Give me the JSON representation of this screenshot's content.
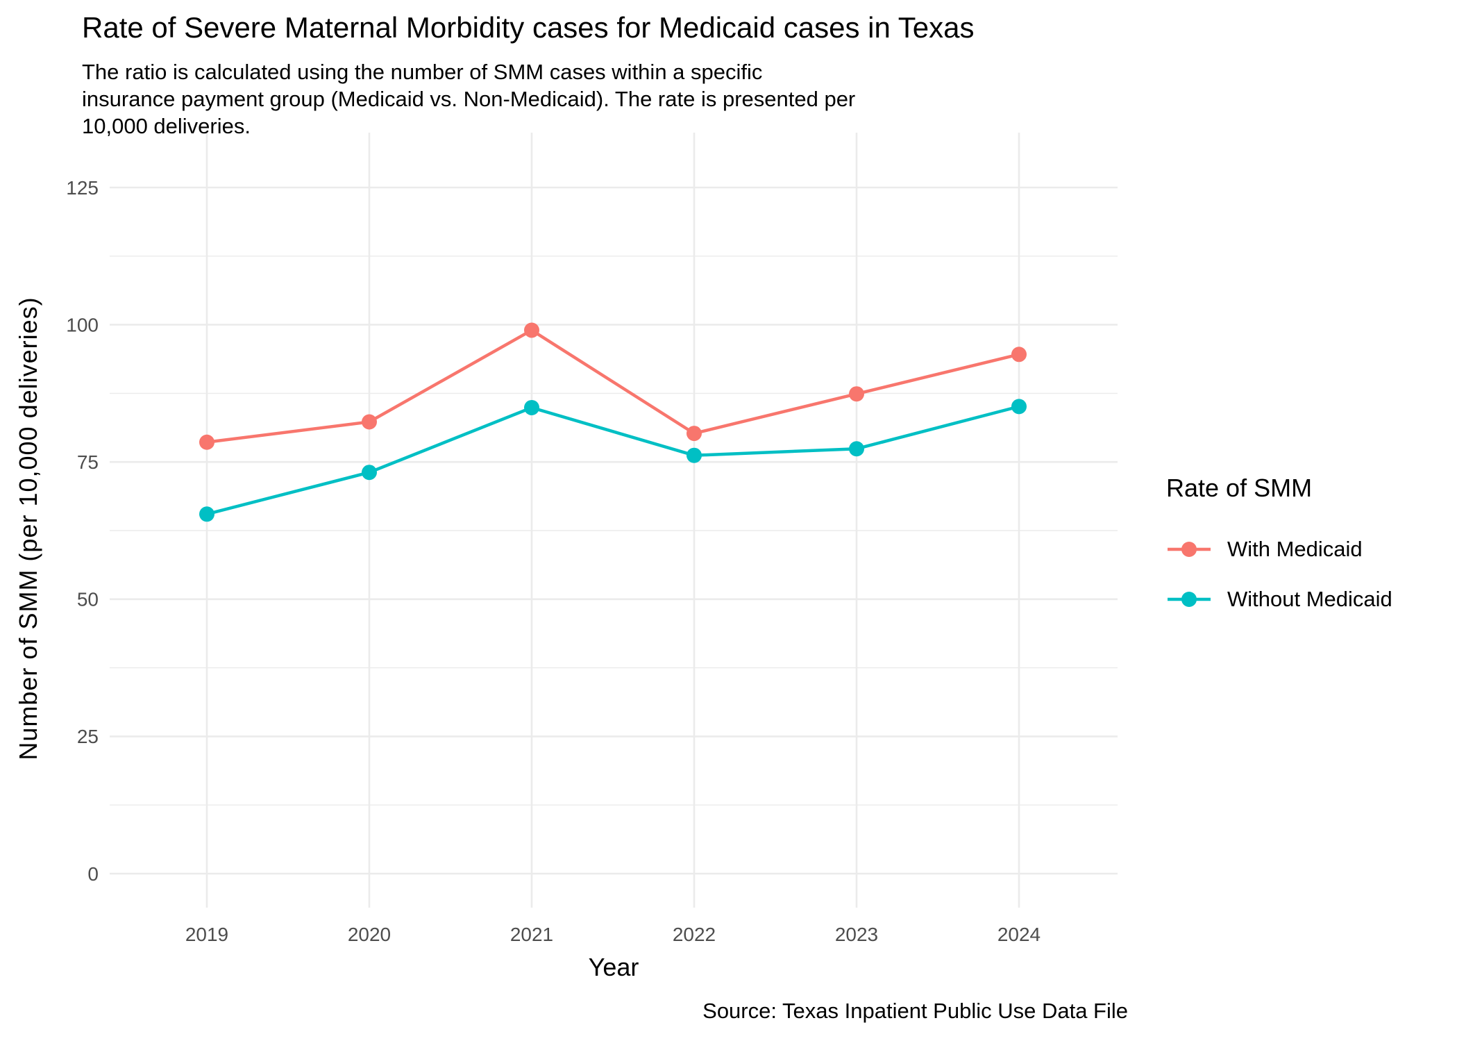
{
  "chart_data": {
    "type": "line",
    "title": "Rate of Severe Maternal Morbidity cases for Medicaid cases in Texas",
    "subtitle": "The ratio is calculated using the number of SMM cases within a specific\ninsurance payment group (Medicaid vs. Non-Medicaid). The rate is presented per\n10,000 deliveries.",
    "caption": "Source: Texas Inpatient Public Use Data File",
    "xlabel": "Year",
    "ylabel": "Number of SMM (per 10,000 deliveries)",
    "categories": [
      "2019",
      "2020",
      "2021",
      "2022",
      "2023",
      "2024"
    ],
    "yticks": [
      0,
      25,
      50,
      75,
      100,
      125
    ],
    "ylim": [
      0,
      125
    ],
    "grid": {
      "horizontal": "major+minor",
      "vertical": "major-only",
      "show": true
    },
    "legend": {
      "title": "Rate of SMM",
      "position": "right"
    },
    "series": [
      {
        "name": "With Medicaid",
        "color": "#F8766D",
        "values": [
          78.6,
          82.3,
          99.0,
          80.2,
          87.4,
          94.6
        ]
      },
      {
        "name": "Without Medicaid",
        "color": "#00BFC4",
        "values": [
          65.5,
          73.1,
          84.9,
          76.2,
          77.4,
          85.1
        ]
      }
    ],
    "colors": {
      "grid": "#EBEBEB",
      "tick_text": "#4D4D4D",
      "text": "#000000",
      "background": "#FFFFFF"
    }
  }
}
